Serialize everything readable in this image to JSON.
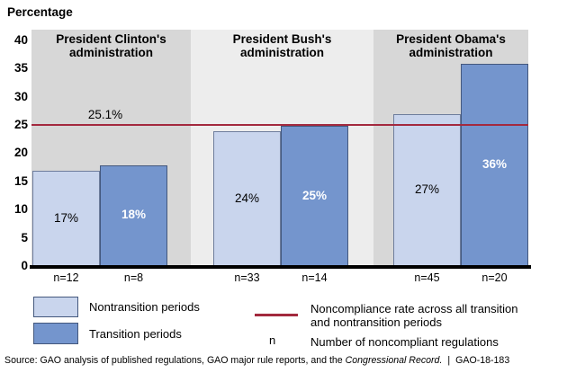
{
  "chart_data": {
    "type": "bar",
    "title": "Percentage",
    "ylim": [
      0,
      40
    ],
    "y_ticks": [
      40,
      35,
      30,
      25,
      20,
      15,
      10,
      5,
      0
    ],
    "grid": false,
    "legend_position": "bottom",
    "categories": [
      "President Clinton's administration",
      "President Bush's administration",
      "President Obama's administration"
    ],
    "series": [
      {
        "name": "Nontransition periods",
        "values": [
          17,
          24,
          27
        ]
      },
      {
        "name": "Transition periods",
        "values": [
          18,
          25,
          36
        ]
      }
    ],
    "groups": [
      {
        "header": [
          "President Clinton's",
          "administration"
        ],
        "bars": [
          {
            "series": "Nontransition periods",
            "value": 17,
            "label": "17%",
            "n_label": "n=12"
          },
          {
            "series": "Transition periods",
            "value": 18,
            "label": "18%",
            "n_label": "n=8"
          }
        ]
      },
      {
        "header": [
          "President Bush's",
          "administration"
        ],
        "bars": [
          {
            "series": "Nontransition periods",
            "value": 24,
            "label": "24%",
            "n_label": "n=33"
          },
          {
            "series": "Transition periods",
            "value": 25,
            "label": "25%",
            "n_label": "n=14"
          }
        ]
      },
      {
        "header": [
          "President Obama's",
          "administration"
        ],
        "bars": [
          {
            "series": "Nontransition periods",
            "value": 27,
            "label": "27%",
            "n_label": "n=45"
          },
          {
            "series": "Transition periods",
            "value": 36,
            "label": "36%",
            "n_label": "n=20"
          }
        ]
      }
    ],
    "reference_line": {
      "value": 25.1,
      "label": "25.1%"
    },
    "colors": {
      "nontransition": "#c9d5ed",
      "nontransition_border": "#6e7d9c",
      "transition": "#7495cd",
      "transition_border": "#44587d",
      "reference_line": "#a3293e",
      "panel_dark": "#d7d7d7",
      "panel_light": "#ededed",
      "baseline": "#000000"
    }
  },
  "legend": {
    "items": [
      {
        "swatch": "nontransition-swatch",
        "label": "Nontransition periods"
      },
      {
        "swatch": "transition-swatch",
        "label": "Transition periods"
      },
      {
        "swatch": "reference-line",
        "label_lines": [
          "Noncompliance rate across all transition",
          "and nontransition periods"
        ]
      },
      {
        "symbol": "n",
        "label": "Number of noncompliant regulations"
      }
    ]
  },
  "footer": {
    "source_prefix": "Source: GAO analysis of published regulations, GAO major rule reports, and the ",
    "source_italic": "Congressional Record.",
    "separator": "|",
    "report_id": "GAO-18-183"
  }
}
